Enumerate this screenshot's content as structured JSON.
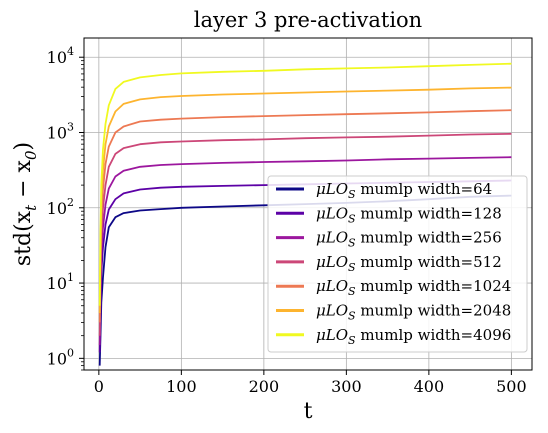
{
  "chart_data": {
    "type": "line",
    "title": "layer 3 pre-activation",
    "xlabel": "t",
    "ylabel": "std(x_t − x_0)",
    "yscale": "log",
    "xlim": [
      -18,
      525
    ],
    "ylim": [
      0.7,
      18000
    ],
    "xticks": [
      0,
      100,
      200,
      300,
      400,
      500
    ],
    "yticks": [
      {
        "value": 1,
        "base": "10",
        "exp": "0"
      },
      {
        "value": 10,
        "base": "10",
        "exp": "1"
      },
      {
        "value": 100,
        "base": "10",
        "exp": "2"
      },
      {
        "value": 1000,
        "base": "10",
        "exp": "3"
      },
      {
        "value": 10000,
        "base": "10",
        "exp": "4"
      }
    ],
    "grid": true,
    "legend_position": "lower-right",
    "x": [
      1,
      2,
      3,
      5,
      8,
      12,
      20,
      30,
      50,
      75,
      100,
      150,
      200,
      250,
      300,
      350,
      400,
      450,
      500
    ],
    "series": [
      {
        "name": "μLO_S mumlp width=64",
        "color": "#0d0887",
        "values": [
          0.8,
          2,
          5.5,
          12,
          30,
          55,
          75,
          85,
          92,
          96,
          100,
          104,
          108,
          112,
          116,
          122,
          130,
          140,
          145
        ]
      },
      {
        "name": "μLO_S mumlp width=128",
        "color": "#5c01a6",
        "values": [
          1.2,
          5,
          14,
          30,
          60,
          95,
          130,
          155,
          175,
          185,
          190,
          195,
          200,
          205,
          210,
          215,
          220,
          225,
          230
        ]
      },
      {
        "name": "μLO_S mumlp width=256",
        "color": "#9c179e",
        "values": [
          1.5,
          8,
          25,
          55,
          110,
          180,
          260,
          310,
          350,
          370,
          380,
          395,
          405,
          415,
          425,
          440,
          450,
          460,
          470
        ]
      },
      {
        "name": "μLO_S mumlp width=512",
        "color": "#cc4778",
        "values": [
          2,
          12,
          40,
          100,
          200,
          350,
          520,
          620,
          700,
          740,
          760,
          790,
          810,
          840,
          860,
          880,
          910,
          940,
          960
        ]
      },
      {
        "name": "μLO_S mumlp width=1024",
        "color": "#ed7953",
        "values": [
          3,
          20,
          70,
          180,
          380,
          650,
          1000,
          1200,
          1400,
          1480,
          1530,
          1600,
          1650,
          1700,
          1750,
          1800,
          1850,
          1920,
          1980
        ]
      },
      {
        "name": "μLO_S mumlp width=2048",
        "color": "#fdb42f",
        "values": [
          4,
          30,
          120,
          320,
          700,
          1200,
          1900,
          2400,
          2750,
          2950,
          3050,
          3200,
          3300,
          3400,
          3500,
          3600,
          3700,
          3850,
          3950
        ]
      },
      {
        "name": "μLO_S mumlp width=4096",
        "color": "#f0f921",
        "values": [
          5,
          50,
          200,
          600,
          1300,
          2300,
          3800,
          4700,
          5400,
          5800,
          6100,
          6400,
          6600,
          6900,
          7100,
          7300,
          7600,
          7900,
          8200
        ]
      }
    ]
  }
}
